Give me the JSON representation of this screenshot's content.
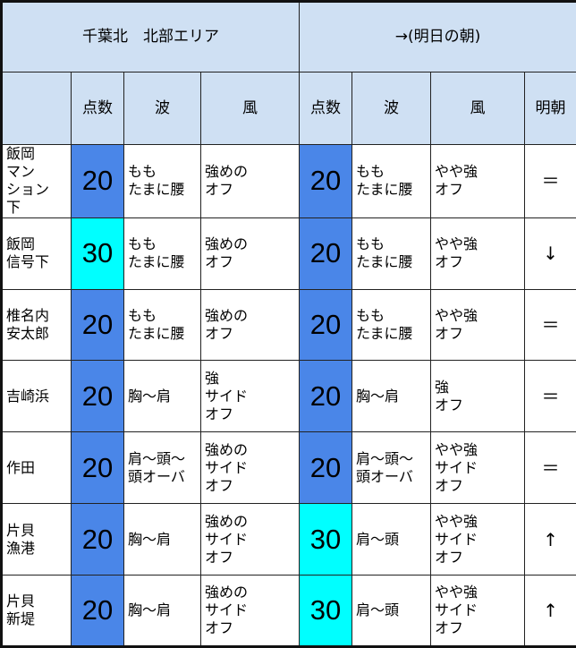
{
  "header": {
    "area_title": "千葉北　北部エリア",
    "forecast_title": "→(明日の朝)",
    "columns": [
      "",
      "点数",
      "波",
      "風",
      "点数",
      "波",
      "風",
      "明朝"
    ]
  },
  "colors": {
    "score_20": "#4a86e8",
    "score_30": "#00ffff",
    "header_bg": "#cfe0f3"
  },
  "rows": [
    {
      "spot": "飯岡\nマン\nション\n下",
      "score": "20",
      "wave": "もも\nたまに腰",
      "wind": "強めの\nオフ",
      "next_score": "20",
      "next_wave": "もも\nたまに腰",
      "next_wind": "やや強\nオフ",
      "trend": "＝"
    },
    {
      "spot": "飯岡\n信号下",
      "score": "30",
      "wave": "もも\nたまに腰",
      "wind": "強めの\nオフ",
      "next_score": "20",
      "next_wave": "もも\nたまに腰",
      "next_wind": "やや強\nオフ",
      "trend": "↓"
    },
    {
      "spot": "椎名内\n安太郎",
      "score": "20",
      "wave": "もも\nたまに腰",
      "wind": "強めの\nオフ",
      "next_score": "20",
      "next_wave": "もも\nたまに腰",
      "next_wind": "やや強\nオフ",
      "trend": "＝"
    },
    {
      "spot": "吉崎浜",
      "score": "20",
      "wave": "胸～肩",
      "wind": "強\nサイド\nオフ",
      "next_score": "20",
      "next_wave": "胸～肩",
      "next_wind": "強\nオフ",
      "trend": "＝"
    },
    {
      "spot": "作田",
      "score": "20",
      "wave": "肩～頭～\n頭オーバ",
      "wind": "強めの\nサイド\nオフ",
      "next_score": "20",
      "next_wave": "肩～頭～\n頭オーバ",
      "next_wind": "やや強\nサイド\nオフ",
      "trend": "＝"
    },
    {
      "spot": "片貝\n漁港",
      "score": "20",
      "wave": "胸～肩",
      "wind": "強めの\nサイド\nオフ",
      "next_score": "30",
      "next_wave": "肩～頭",
      "next_wind": "やや強\nサイド\nオフ",
      "trend": "↑"
    },
    {
      "spot": "片貝\n新堤",
      "score": "20",
      "wave": "胸～肩",
      "wind": "強めの\nサイド\nオフ",
      "next_score": "30",
      "next_wave": "肩～頭",
      "next_wind": "やや強\nサイド\nオフ",
      "trend": "↑"
    }
  ]
}
